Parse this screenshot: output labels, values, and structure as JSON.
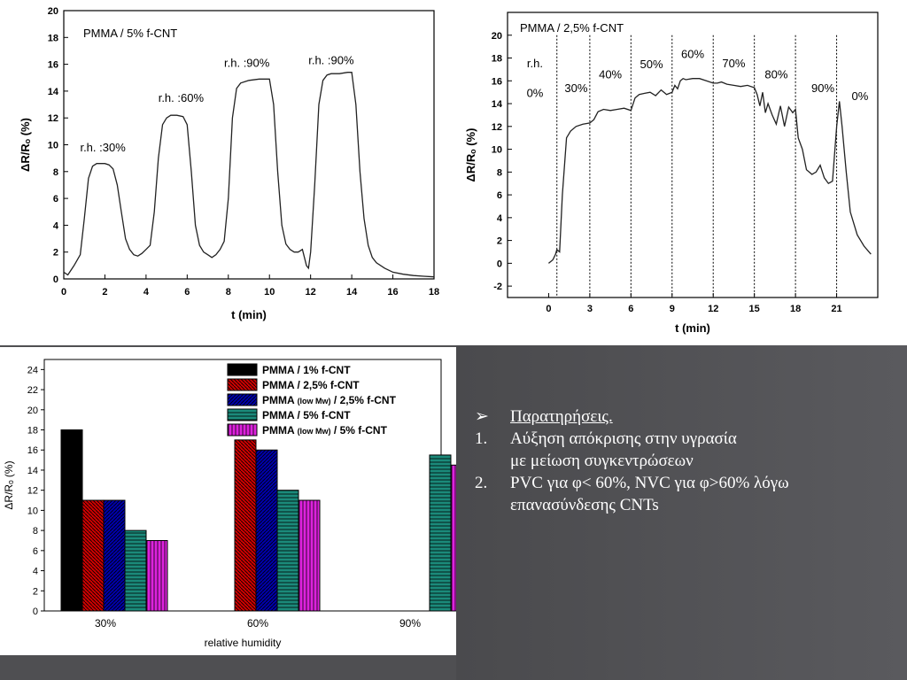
{
  "chart_data": [
    {
      "type": "line",
      "annotation_title": "PMMA / 5% f-CNT",
      "xlabel": "t (min)",
      "ylabel": "ΔR/Rₒ (%)",
      "xlim": [
        0,
        18
      ],
      "ylim": [
        0,
        20
      ],
      "xticks": [
        "0",
        "2",
        "4",
        "6",
        "8",
        "10",
        "12",
        "14",
        "16",
        "18"
      ],
      "yticks": [
        "0",
        "2",
        "4",
        "6",
        "8",
        "10",
        "12",
        "14",
        "16",
        "18",
        "20"
      ],
      "annotations": [
        "r.h. :30%",
        "r.h. :60%",
        "r.h. :90%",
        "r.h. :90%"
      ],
      "series": [
        {
          "x": [
            0,
            0.2,
            0.5,
            0.8,
            1.0,
            1.2,
            1.4,
            1.6,
            1.8,
            2.0,
            2.2,
            2.4,
            2.6,
            2.8,
            3.0,
            3.2,
            3.4,
            3.6,
            3.8,
            4.0,
            4.2,
            4.4,
            4.6,
            4.8,
            5.0,
            5.2,
            5.5,
            5.8,
            6.0,
            6.2,
            6.4,
            6.6,
            6.8,
            7.0,
            7.2,
            7.4,
            7.6,
            7.8,
            8.0,
            8.2,
            8.4,
            8.6,
            8.8,
            9.0,
            9.5,
            10.0,
            10.2,
            10.4,
            10.6,
            10.8,
            11.0,
            11.2,
            11.4,
            11.6,
            11.8,
            11.9,
            12.0,
            12.2,
            12.4,
            12.6,
            12.8,
            13.0,
            13.4,
            13.8,
            14.0,
            14.2,
            14.4,
            14.6,
            14.8,
            15.0,
            15.2,
            15.6,
            16.0,
            16.5,
            17.0,
            17.5,
            18.0
          ],
          "y": [
            0.5,
            0.3,
            1.0,
            1.8,
            4.5,
            7.5,
            8.4,
            8.6,
            8.6,
            8.6,
            8.5,
            8.2,
            7.0,
            5.0,
            3.0,
            2.2,
            1.8,
            1.7,
            1.9,
            2.2,
            2.5,
            5.0,
            9.0,
            11.5,
            12.0,
            12.2,
            12.2,
            12.1,
            11.5,
            8.0,
            4.0,
            2.5,
            2.0,
            1.8,
            1.6,
            1.8,
            2.2,
            2.8,
            6.0,
            12.0,
            14.2,
            14.6,
            14.7,
            14.8,
            14.9,
            14.9,
            13.0,
            8.0,
            4.0,
            2.6,
            2.2,
            2.0,
            2.0,
            2.2,
            1.0,
            0.8,
            2.0,
            7.0,
            13.0,
            14.8,
            15.2,
            15.3,
            15.3,
            15.4,
            15.4,
            13.0,
            8.0,
            4.5,
            2.5,
            1.6,
            1.2,
            0.8,
            0.5,
            0.35,
            0.25,
            0.2,
            0.15
          ]
        }
      ]
    },
    {
      "type": "line",
      "annotation_title": "PMMA / 2,5% f-CNT",
      "xlabel": "t (min)",
      "ylabel": "ΔR/Rₒ (%)",
      "xlim": [
        -3,
        24
      ],
      "ylim": [
        -3,
        22
      ],
      "xticks": [
        "0",
        "3",
        "6",
        "9",
        "12",
        "15",
        "18",
        "21"
      ],
      "yticks": [
        "-2",
        "0",
        "2",
        "4",
        "6",
        "8",
        "10",
        "12",
        "14",
        "16",
        "18",
        "20"
      ],
      "annotations": [
        "r.h.",
        "0%",
        "30%",
        "40%",
        "50%",
        "60%",
        "70%",
        "80%",
        "90%",
        "0%"
      ],
      "series": [
        {
          "x": [
            0,
            0.3,
            0.5,
            0.6,
            0.8,
            1.0,
            1.3,
            1.6,
            2.0,
            2.5,
            3.0,
            3.3,
            3.6,
            4.0,
            4.5,
            5.0,
            5.5,
            6.0,
            6.3,
            6.6,
            7.0,
            7.4,
            7.8,
            8.2,
            8.6,
            9.0,
            9.2,
            9.4,
            9.6,
            9.8,
            10.0,
            10.5,
            11.0,
            11.5,
            12.0,
            12.3,
            12.6,
            13.0,
            13.5,
            14.0,
            14.5,
            15.0,
            15.2,
            15.4,
            15.6,
            15.8,
            16.0,
            16.3,
            16.6,
            16.9,
            17.2,
            17.5,
            17.8,
            18.0,
            18.2,
            18.5,
            18.8,
            19.2,
            19.5,
            19.8,
            20.1,
            20.4,
            20.7,
            21.0,
            21.2,
            21.4,
            21.7,
            22.0,
            22.5,
            23.0,
            23.5
          ],
          "y": [
            0,
            0.3,
            0.8,
            1.2,
            1.0,
            6.0,
            11.0,
            11.6,
            12.0,
            12.2,
            12.3,
            12.6,
            13.3,
            13.5,
            13.4,
            13.5,
            13.6,
            13.4,
            14.5,
            14.8,
            14.9,
            15.0,
            14.7,
            15.2,
            14.8,
            15.0,
            15.6,
            15.3,
            16.0,
            16.2,
            16.1,
            16.2,
            16.2,
            16.0,
            15.8,
            15.8,
            15.9,
            15.7,
            15.6,
            15.5,
            15.6,
            15.4,
            14.8,
            13.8,
            15.0,
            13.2,
            14.0,
            13.0,
            12.2,
            13.8,
            12.0,
            13.7,
            13.2,
            13.5,
            11.0,
            10.0,
            8.2,
            7.8,
            8.0,
            8.6,
            7.5,
            7.0,
            7.2,
            12.0,
            14.2,
            12.0,
            8.0,
            4.5,
            2.5,
            1.5,
            0.8
          ]
        }
      ]
    },
    {
      "type": "bar",
      "xlabel": "relative humidity",
      "ylabel": "ΔR/Rₒ (%)",
      "ylim": [
        0,
        25
      ],
      "yticks": [
        "0",
        "2",
        "4",
        "6",
        "8",
        "10",
        "12",
        "14",
        "16",
        "18",
        "20",
        "22",
        "24"
      ],
      "categories": [
        "30%",
        "60%",
        "90%"
      ],
      "series": [
        {
          "name": "PMMA / 1% f-CNT",
          "values": [
            18,
            null,
            null
          ],
          "color": "#000000",
          "pattern": "solid"
        },
        {
          "name": "PMMA / 2,5% f-CNT",
          "values": [
            11,
            17,
            null
          ],
          "color": "#cc0000",
          "pattern": "diag"
        },
        {
          "name_main": "PMMA",
          "name_small": "(low Mw)",
          "name_rest": "/ 2,5% f-CNT",
          "values": [
            11,
            16,
            null
          ],
          "color": "#0000aa",
          "pattern": "diag2"
        },
        {
          "name": "PMMA / 5% f-CNT",
          "values": [
            8,
            12,
            15.5
          ],
          "color": "#1b8a7a",
          "pattern": "horiz"
        },
        {
          "name_main": "PMMA",
          "name_small": "(low Mw)",
          "name_rest": "/ 5% f-CNT",
          "values": [
            7,
            11,
            14.5
          ],
          "color": "#dd22dd",
          "pattern": "vert"
        }
      ]
    }
  ],
  "observations": {
    "heading": "Παρατηρήσεις.",
    "heading_marker": "➢",
    "items": [
      {
        "marker": "1.",
        "line1": "Αύξηση απόκρισης στην υγρασία",
        "line2": "με μείωση συγκεντρώσεων"
      },
      {
        "marker": "2.",
        "line1": " PVC για φ< 60%, NVC για φ>60% λόγω",
        "line2": "επανασύνδεσης CNTs"
      }
    ]
  }
}
